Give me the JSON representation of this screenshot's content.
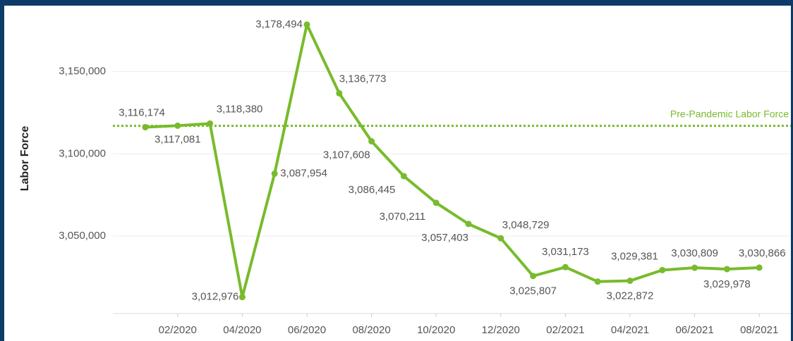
{
  "chart_data": {
    "type": "line",
    "y_axis_label": "Labor Force",
    "categories": [
      null,
      "02/2020",
      null,
      "04/2020",
      null,
      "06/2020",
      null,
      "08/2020",
      null,
      "10/2020",
      null,
      "12/2020",
      null,
      "02/2021",
      null,
      "04/2021",
      null,
      "06/2021",
      null,
      "08/2021"
    ],
    "series": [
      {
        "name": "Labor Force",
        "color": "#78bb2c",
        "values": [
          3116174,
          3117081,
          3118380,
          3012976,
          3087954,
          3178494,
          3136773,
          3107608,
          3086445,
          3070211,
          3057403,
          3048729,
          3025807,
          3031173,
          3022400,
          3022872,
          3029381,
          3030809,
          3029978,
          3030866
        ],
        "value_labels": [
          "3,116,174",
          "3,117,081",
          "3,118,380",
          "3,012,976",
          "3,087,954",
          "3,178,494",
          "3,136,773",
          "3,107,608",
          "3,086,445",
          "3,070,211",
          "3,057,403",
          "3,048,729",
          "3,025,807",
          "3,031,173",
          null,
          "3,022,872",
          "3,029,381",
          "3,030,809",
          "3,029,978",
          "3,030,866"
        ]
      }
    ],
    "reference_line": {
      "label": "Pre-Pandemic Labor Force",
      "value": 3117000
    },
    "ylim": [
      3003000,
      3190000
    ],
    "yticks": [
      {
        "value": 3050000,
        "label": "3,050,000"
      },
      {
        "value": 3100000,
        "label": "3,100,000"
      },
      {
        "value": 3150000,
        "label": "3,150,000"
      }
    ],
    "grid": true
  }
}
